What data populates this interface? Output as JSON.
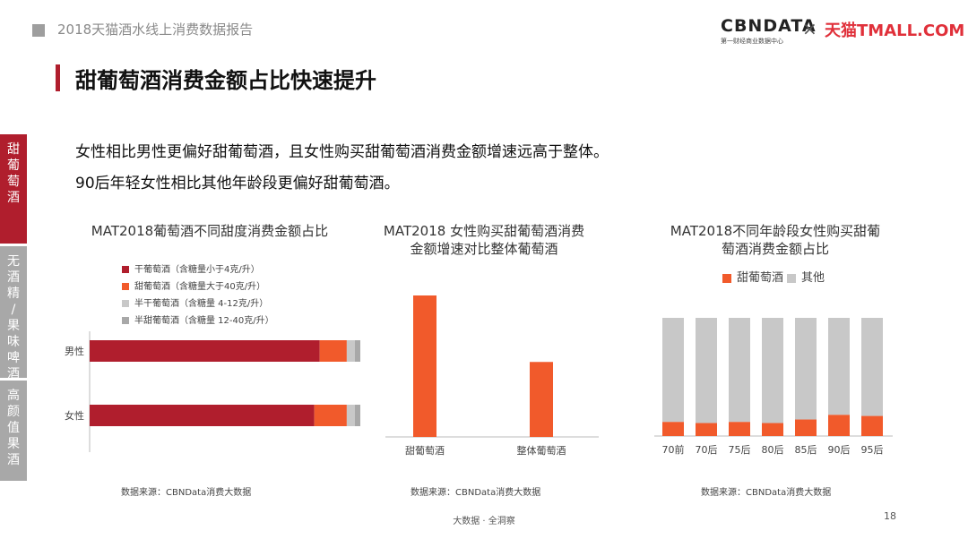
{
  "header": {
    "report_title": "2018天猫酒水线上消费数据报告",
    "logo_cbndata": "CBNDATA",
    "logo_cbndata_sub": "第一财经商业数据中心",
    "logo_times": "×",
    "logo_tmall": "天猫TMALL.COM"
  },
  "page_title": "甜葡萄酒消费金额占比快速提升",
  "descriptions": [
    "女性相比男性更偏好甜葡萄酒，且女性购买甜葡萄酒消费金额增速远高于整体。",
    "90后年轻女性相比其他年龄段更偏好甜葡萄酒。"
  ],
  "side_tabs": [
    {
      "label": "甜葡萄酒",
      "color": "#b01e2d"
    },
    {
      "label": "无酒精/果味啤酒",
      "color": "#a8a8a8"
    },
    {
      "label": "高颜值果酒",
      "color": "#a8a8a8"
    }
  ],
  "colors": {
    "dark_red": "#b01e2d",
    "orange": "#f15a2b",
    "light_gray": "#c8c8c8",
    "gray": "#a8a8a8"
  },
  "chart_data": [
    {
      "type": "bar",
      "orientation": "horizontal-stacked-100",
      "title": "MAT2018葡萄酒不同甜度消费金额占比",
      "categories": [
        "男性",
        "女性"
      ],
      "series": [
        {
          "name": "干葡萄酒（含糖量小于4克/升）",
          "color": "#b01e2d",
          "values": [
            85,
            83
          ]
        },
        {
          "name": "甜葡萄酒（含糖量大于40克/升）",
          "color": "#f15a2b",
          "values": [
            10,
            12
          ]
        },
        {
          "name": "半干葡萄酒（含糖量 4-12克/升）",
          "color": "#c8c8c8",
          "values": [
            3,
            3
          ]
        },
        {
          "name": "半甜葡萄酒（含糖量 12-40克/升）",
          "color": "#a8a8a8",
          "values": [
            2,
            2
          ]
        }
      ],
      "legend": "top-left",
      "source": "数据来源：CBNData消费大数据"
    },
    {
      "type": "bar",
      "title": "MAT2018 女性购买甜葡萄酒消费金额增速对比整体葡萄酒",
      "categories": [
        "甜葡萄酒",
        "整体葡萄酒"
      ],
      "values": [
        100,
        53
      ],
      "color": "#f15a2b",
      "source": "数据来源：CBNData消费大数据"
    },
    {
      "type": "bar",
      "orientation": "vertical-stacked-100",
      "title": "MAT2018不同年龄段女性购买甜葡萄酒消费金额占比",
      "categories": [
        "70前",
        "70后",
        "75后",
        "80后",
        "85后",
        "90后",
        "95后"
      ],
      "series": [
        {
          "name": "甜葡萄酒",
          "color": "#f15a2b",
          "values": [
            12,
            11,
            12,
            11,
            14,
            18,
            17
          ]
        },
        {
          "name": "其他",
          "color": "#c8c8c8",
          "values": [
            88,
            89,
            88,
            89,
            86,
            82,
            83
          ]
        }
      ],
      "legend": "top",
      "source": "数据来源：CBNData消费大数据"
    }
  ],
  "footer": {
    "slogan": "大数据 · 全洞察",
    "page_number": "18"
  }
}
